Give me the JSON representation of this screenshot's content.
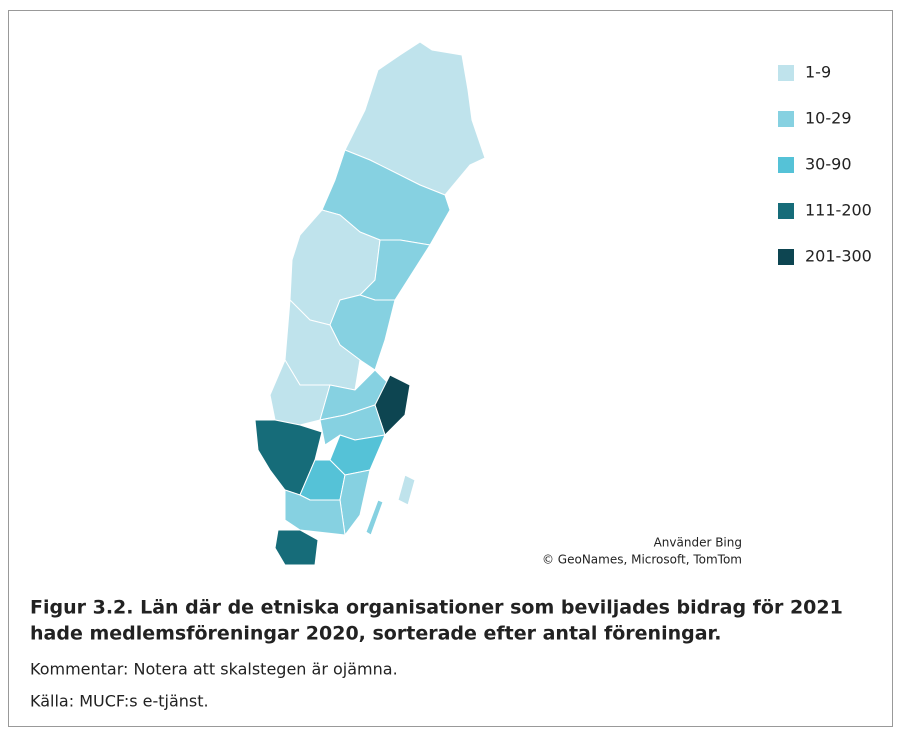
{
  "map": {
    "legend": [
      {
        "label": "1-9",
        "color": "#bfe3ec"
      },
      {
        "label": "10-29",
        "color": "#86d1e1"
      },
      {
        "label": "30-90",
        "color": "#55c2d7"
      },
      {
        "label": "111-200",
        "color": "#166c79"
      },
      {
        "label": "201-300",
        "color": "#0d4551"
      }
    ],
    "attribution": [
      "Använder Bing",
      "© GeoNames, Microsoft, TomTom"
    ]
  },
  "caption": {
    "title": [
      "Figur 3.2. Län där de etniska organisationer som beviljades bidrag för 2021",
      "hade medlemsföreningar 2020, sorterade efter antal föreningar."
    ],
    "notes": [
      "Kommentar: Notera att skalstegen är ojämna.",
      "Källa: MUCF:s e-tjänst."
    ]
  }
}
